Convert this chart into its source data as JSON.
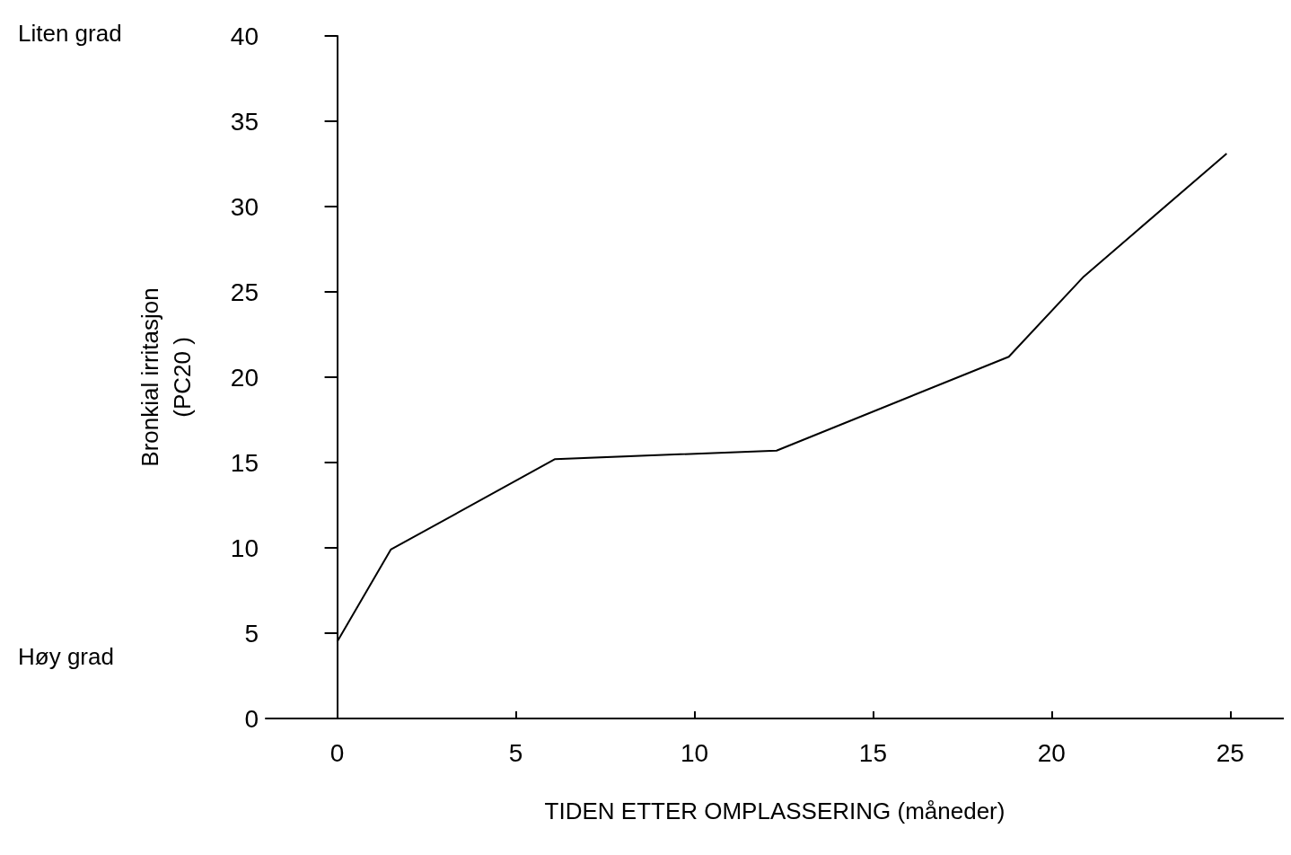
{
  "chart_data": {
    "type": "line",
    "xlabel": "TIDEN ETTER OMPLASSERING (måneder)",
    "ylabel": "Bronkial irritasjon\n(PC20 )",
    "annotations": [
      "Liten grad",
      "Høy grad"
    ],
    "x": [
      0,
      1.5,
      6.1,
      12.3,
      18.8,
      20.9,
      24.9
    ],
    "series": [
      {
        "color": "#000000",
        "values": [
          4.5,
          9.9,
          15.2,
          15.7,
          21.2,
          25.9,
          33.1
        ]
      }
    ],
    "xlim": [
      -2,
      26.5
    ],
    "xticks": [
      0,
      5,
      10,
      15,
      20,
      25
    ],
    "ylim": [
      0,
      40
    ],
    "yticks": [
      0,
      5,
      10,
      15,
      20,
      25,
      30,
      35,
      40
    ],
    "marker": "none",
    "line_style": "solid"
  }
}
